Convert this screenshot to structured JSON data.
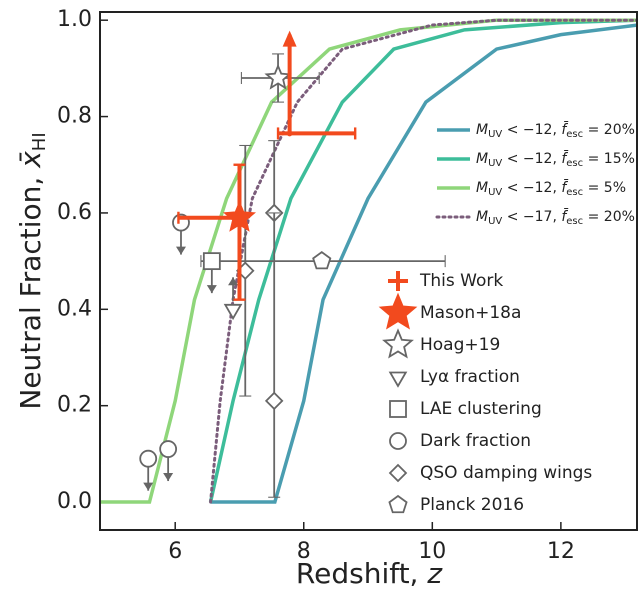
{
  "chart_data": {
    "type": "line",
    "xlabel": [
      "Redshift, ",
      "z"
    ],
    "ylabel": [
      "Neutral Fraction, ",
      "x̄",
      "HI"
    ],
    "xlim": [
      4.83,
      13.2
    ],
    "ylim": [
      -0.058,
      1.017
    ],
    "xticks": [
      6,
      8,
      10,
      12
    ],
    "yticks": [
      {
        "value": 0,
        "label": "0.0"
      },
      0.2,
      0.4,
      0.6,
      0.8,
      {
        "value": 1,
        "label": "1.0"
      }
    ],
    "series": [
      {
        "legend_parts": [
          "M",
          "UV",
          " < −17,  ",
          "f̄",
          "esc",
          " = 20%"
        ],
        "color": "#7b5d7b",
        "dash": "dotted",
        "x": [
          6.55,
          6.7,
          6.9,
          7.2,
          7.9,
          8.6,
          10,
          11,
          13.2
        ],
        "values": [
          0,
          0.21,
          0.42,
          0.63,
          0.83,
          0.94,
          0.99,
          1.0,
          1.0
        ]
      },
      {
        "legend_parts": [
          "M",
          "UV",
          " < −12,  ",
          "f̄",
          "esc",
          " = 20%"
        ],
        "color": "#4a9db0",
        "dash": "solid",
        "x": [
          6.55,
          7.55,
          8.0,
          8.3,
          9.0,
          9.9,
          11.0,
          12,
          13.2
        ],
        "values": [
          0,
          0,
          0.21,
          0.42,
          0.63,
          0.83,
          0.94,
          0.97,
          0.99
        ]
      },
      {
        "legend_parts": [
          "M",
          "UV",
          " < −12,  ",
          "f̄",
          "esc",
          " = 15%"
        ],
        "color": "#3dbd9a",
        "dash": "solid",
        "x": [
          6.55,
          6.9,
          7.3,
          7.8,
          8.6,
          9.4,
          10.5,
          12,
          13.2
        ],
        "values": [
          0,
          0.21,
          0.42,
          0.63,
          0.83,
          0.94,
          0.98,
          0.995,
          1.0
        ]
      },
      {
        "legend_parts": [
          "M",
          "UV",
          " < −12,  ",
          "f̄",
          "esc",
          " = 5%"
        ],
        "color": "#8fd67a",
        "dash": "solid",
        "x": [
          4.83,
          5.6,
          6.0,
          6.3,
          6.8,
          7.5,
          8.4,
          9.5,
          11,
          13.2
        ],
        "values": [
          0,
          0,
          0.21,
          0.42,
          0.63,
          0.83,
          0.94,
          0.98,
          1.0,
          1.0
        ]
      }
    ],
    "observations": [
      {
        "name": "Planck 2016",
        "marker": "pentagon",
        "color": "#666666",
        "points": [
          {
            "x": 8.28,
            "y": 0.5,
            "xrange": [
              6.4,
              10.2
            ]
          }
        ]
      },
      {
        "name": "QSO damping wings",
        "marker": "diamond",
        "color": "#666666",
        "points": [
          {
            "x": 7.09,
            "y": 0.48,
            "yrange": [
              0.22,
              0.74
            ]
          },
          {
            "x": 7.54,
            "y": 0.6,
            "yrange": [
              0.6,
              0.75
            ]
          },
          {
            "x": 7.54,
            "y": 0.21,
            "yrange": [
              0.01,
              0.6
            ]
          }
        ]
      },
      {
        "name": "Dark fraction",
        "marker": "circle",
        "color": "#666666",
        "points": [
          {
            "x": 6.09,
            "y": 0.58,
            "limit": "upper"
          },
          {
            "x": 5.58,
            "y": 0.09,
            "limit": "upper"
          },
          {
            "x": 5.89,
            "y": 0.11,
            "limit": "upper"
          }
        ]
      },
      {
        "name": "LAE clustering",
        "marker": "square",
        "color": "#666666",
        "points": [
          {
            "x": 6.57,
            "y": 0.5,
            "limit": "upper"
          }
        ]
      },
      {
        "name": "Lyα fraction",
        "marker": "triangle",
        "color": "#666666",
        "points": [
          {
            "x": 6.9,
            "y": 0.4,
            "limit": "lower"
          }
        ]
      },
      {
        "name": "Hoag+19",
        "marker": "star-open",
        "color": "#666666",
        "points": [
          {
            "x": 7.6,
            "y": 0.88,
            "xrange": [
              7.03,
              8.24
            ],
            "yrange": [
              0.83,
              0.93
            ]
          }
        ]
      },
      {
        "name": "Mason+18a",
        "marker": "star",
        "color": "#f24a1e",
        "points": [
          {
            "x": 7.0,
            "y": 0.59,
            "yrange": [
              0.42,
              0.7
            ]
          }
        ]
      },
      {
        "name": "This Work",
        "marker": "cross",
        "color": "#f24a1e",
        "points": [
          {
            "x": 7.0,
            "y": 0.59,
            "xrange": [
              6.05,
              7.05
            ]
          },
          {
            "x": 7.78,
            "y": 0.765,
            "xrange": [
              7.6,
              8.8
            ],
            "yrange": [
              0.765,
              0.97
            ],
            "limit": "lower"
          }
        ]
      }
    ]
  }
}
